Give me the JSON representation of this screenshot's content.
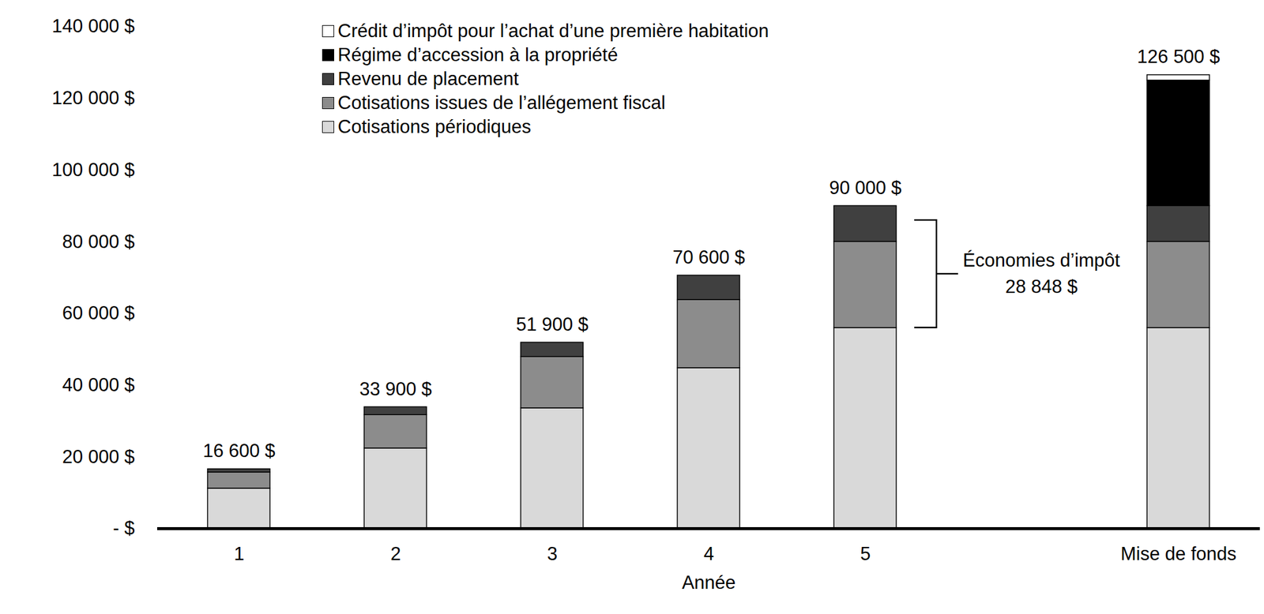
{
  "chart_data": {
    "type": "bar",
    "stacked": true,
    "x_label": "Année",
    "categories": [
      "1",
      "2",
      "3",
      "4",
      "5",
      null,
      "Mise de fonds"
    ],
    "series": [
      {
        "name": "Cotisations périodiques",
        "color": "#d9d9d9",
        "values": [
          11200,
          22400,
          33600,
          44800,
          56000,
          null,
          56000
        ]
      },
      {
        "name": "Cotisations issues de l’allégement fiscal",
        "color": "#8c8c8c",
        "values": [
          4500,
          9300,
          14300,
          19000,
          24000,
          null,
          24000
        ]
      },
      {
        "name": "Revenu de placement",
        "color": "#404040",
        "values": [
          900,
          2200,
          4000,
          6800,
          10000,
          null,
          10000
        ]
      },
      {
        "name": "Régime d’accession à la propriété",
        "color": "#000000",
        "values": [
          null,
          null,
          null,
          null,
          null,
          null,
          35000
        ]
      },
      {
        "name": "Crédit d’impôt pour l’achat d’une première habitation",
        "color": "#ffffff",
        "values": [
          null,
          null,
          null,
          null,
          null,
          null,
          1500
        ]
      }
    ],
    "totals": [
      16600,
      33900,
      51900,
      70600,
      90000,
      null,
      126500
    ],
    "total_labels": [
      "16 600 $",
      "33 900 $",
      "51 900 $",
      "70 600 $",
      "90 000 $",
      null,
      "126 500 $"
    ],
    "annotation": {
      "lines": [
        "Économies d’impôt",
        "28 848 $"
      ],
      "span": [
        56000,
        86000
      ]
    },
    "ylim": [
      0,
      140000
    ],
    "yticks": [
      {
        "value": 0,
        "label": "- $"
      },
      {
        "value": 20000,
        "label": "20 000 $"
      },
      {
        "value": 40000,
        "label": "40 000 $"
      },
      {
        "value": 60000,
        "label": "60 000 $"
      },
      {
        "value": 80000,
        "label": "80 000 $"
      },
      {
        "value": 100000,
        "label": "100 000 $"
      },
      {
        "value": 120000,
        "label": "120 000 $"
      },
      {
        "value": 140000,
        "label": "140 000 $"
      }
    ],
    "grid": false,
    "data_labels": false,
    "legend": "top-left"
  }
}
